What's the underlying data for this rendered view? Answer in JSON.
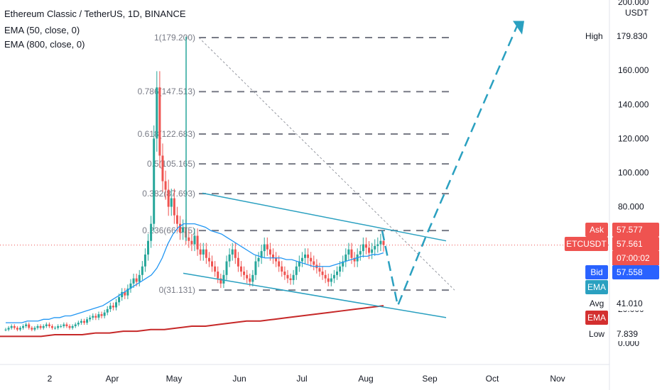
{
  "header": {
    "title": "Ethereum Classic / TetherUS, 1D, BINANCE",
    "ema50": "EMA (50, close, 0)",
    "ema800": "EMA (800, close, 0)"
  },
  "chart_data": {
    "type": "candlestick",
    "symbol": "ETCUSDT",
    "y_unit": "USDT",
    "y_ticks": [
      "200.000",
      "180.000",
      "160.000",
      "140.000",
      "120.000",
      "100.000",
      "80.000",
      "60.000",
      "40.000",
      "20.000",
      "0.000"
    ],
    "x_ticks": [
      "2",
      "Apr",
      "May",
      "Jun",
      "Jul",
      "Aug",
      "Sep",
      "Oct",
      "Nov"
    ],
    "fib_levels": [
      {
        "label": "1(179.200)",
        "value": 179.2
      },
      {
        "label": "0.786(147.513)",
        "value": 147.513
      },
      {
        "label": "0.618(122.683)",
        "value": 122.683
      },
      {
        "label": "0.5(105.165)",
        "value": 105.165
      },
      {
        "label": "0.382(87.693)",
        "value": 87.693
      },
      {
        "label": "0.236(66.075)",
        "value": 66.075
      },
      {
        "label": "0(31.131)",
        "value": 31.131
      }
    ],
    "price_tags": {
      "high": {
        "label": "High",
        "value": "179.830"
      },
      "ask": {
        "label": "Ask",
        "value": "57.577"
      },
      "last": {
        "label": "ETCUSDT",
        "value": "57.561",
        "timer": "07:00:02"
      },
      "bid": {
        "label": "Bid",
        "value": "57.558"
      },
      "ema_blue": {
        "label": "EMA"
      },
      "avg": {
        "label": "Avg",
        "value": "41.010"
      },
      "ema_red": {
        "label": "EMA"
      },
      "low": {
        "label": "Low",
        "value": "7.839"
      }
    },
    "closes": [
      8,
      9,
      10,
      9,
      8,
      9,
      10,
      11,
      9,
      8,
      9,
      10,
      9,
      10,
      11,
      10,
      9,
      9,
      10,
      10,
      11,
      10,
      9,
      10,
      11,
      12,
      13,
      12,
      14,
      15,
      16,
      15,
      17,
      16,
      18,
      20,
      22,
      21,
      24,
      27,
      30,
      28,
      32,
      35,
      38,
      36,
      40,
      45,
      52,
      60,
      70,
      120,
      150,
      110,
      95,
      90,
      80,
      85,
      75,
      70,
      65,
      68,
      62,
      60,
      58,
      63,
      55,
      52,
      55,
      50,
      48,
      45,
      42,
      38,
      35,
      40,
      48,
      52,
      55,
      50,
      45,
      42,
      40,
      38,
      36,
      40,
      48,
      50,
      54,
      58,
      55,
      52,
      50,
      48,
      45,
      42,
      40,
      38,
      37,
      40,
      45,
      48,
      50,
      52,
      50,
      48,
      46,
      44,
      42,
      40,
      38,
      36,
      38,
      40,
      42,
      45,
      48,
      52,
      55,
      50,
      48,
      52,
      54,
      58,
      56,
      53,
      55,
      57,
      58,
      60,
      57.6
    ],
    "ema50": [
      12,
      12,
      12,
      12,
      13,
      13,
      13,
      14,
      14,
      15,
      15,
      16,
      16,
      17,
      18,
      19,
      20,
      21,
      22,
      24,
      26,
      28,
      30,
      32,
      34,
      36,
      38,
      40,
      44,
      50,
      58,
      64,
      68,
      70,
      70,
      70,
      69,
      68,
      66,
      65,
      64,
      62,
      60,
      58,
      56,
      54,
      52,
      51,
      50,
      50,
      50,
      50,
      49,
      49,
      48,
      47,
      46,
      45,
      45,
      45,
      45,
      46,
      47,
      48,
      49,
      50,
      51,
      51,
      52,
      52,
      53
    ],
    "ema800": [
      4,
      4,
      4,
      4,
      5,
      5,
      5,
      6,
      6,
      7,
      7,
      8,
      8,
      9,
      10,
      10,
      11,
      12,
      13,
      13,
      14,
      15,
      16,
      17,
      18,
      19,
      20,
      21,
      22
    ]
  }
}
